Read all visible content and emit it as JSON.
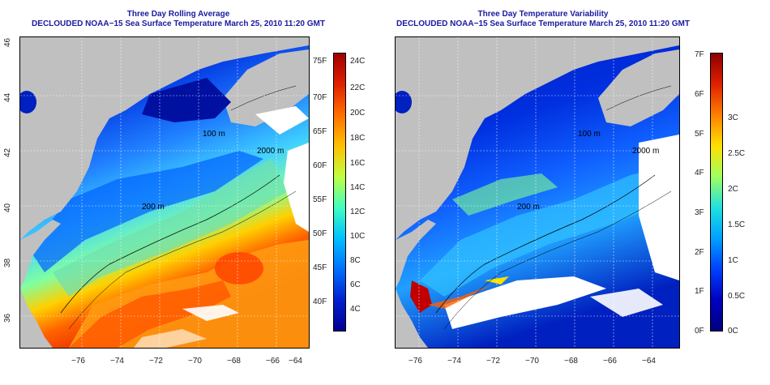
{
  "left_panel": {
    "title_line1": "Three Day Rolling Average",
    "title_line2": "DECLOUDED NOAA−15 Sea Surface Temperature March 25, 2010 11:20 GMT",
    "lat_ticks": [
      "46",
      "44",
      "42",
      "40",
      "38",
      "36"
    ],
    "lon_ticks": [
      "−76",
      "−74",
      "−72",
      "−70",
      "−68",
      "−66",
      "−64"
    ],
    "contour_labels": [
      "100 m",
      "2000 m",
      "200 m"
    ],
    "colorbar": {
      "fahrenheit": [
        "75F",
        "70F",
        "65F",
        "60F",
        "55F",
        "50F",
        "45F",
        "40F"
      ],
      "celsius": [
        "24C",
        "22C",
        "20C",
        "18C",
        "16C",
        "14C",
        "12C",
        "10C",
        "8C",
        "6C",
        "4C"
      ],
      "colors": [
        "#a00000",
        "#e02000",
        "#ff7000",
        "#ffc000",
        "#c0ff40",
        "#40ffc0",
        "#00c0ff",
        "#0070ff",
        "#0020d0",
        "#000090"
      ]
    }
  },
  "right_panel": {
    "title_line1": "Three Day Temperature Variability",
    "title_line2": "DECLOUDED NOAA−15 Sea Surface Temperature March 25, 2010 11:20 GMT",
    "lon_ticks": [
      "−76",
      "−74",
      "−72",
      "−70",
      "−68",
      "−66",
      "−64"
    ],
    "contour_labels": [
      "100 m",
      "2000 m",
      "200 m"
    ],
    "colorbar": {
      "fahrenheit": [
        "7F",
        "6F",
        "5F",
        "4F",
        "3F",
        "2F",
        "1F",
        "0F"
      ],
      "celsius": [
        "3C",
        "2.5C",
        "2C",
        "1.5C",
        "1C",
        "0.5C",
        "0C"
      ],
      "colors": [
        "#8b0000",
        "#e02000",
        "#ff8000",
        "#ffe000",
        "#a0ff60",
        "#20e0e0",
        "#00a0ff",
        "#0040ff",
        "#0000c0",
        "#000080"
      ]
    }
  }
}
